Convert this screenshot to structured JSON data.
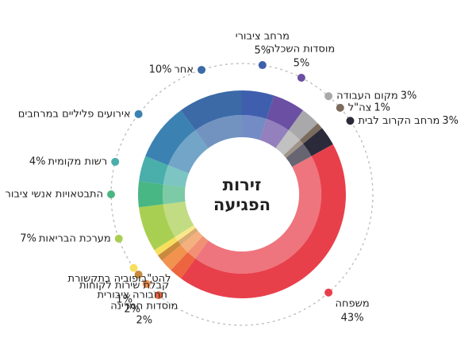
{
  "chart_data": {
    "type": "donut",
    "title": [
      "זירות",
      "הפגיעה"
    ],
    "categories": [
      "מרחב ציבורי",
      "מוסדות השכלה",
      "מקום העבודה",
      "צה\"ל",
      "מרחב הקרוב לבית",
      "משפחה",
      "מוסדות המדינה",
      "תחבורה ציבורית",
      "קבלת שירות לקוחות",
      "להט\"בופוביה בתקשורת",
      "מערכת הבריאות",
      "התבטאויות אנשי ציבור",
      "רשות מקומית",
      "אירועים פליליים במרחבים",
      "אחר"
    ],
    "values": [
      5,
      5,
      3,
      1,
      3,
      43,
      2,
      2,
      1,
      1,
      7,
      4,
      4,
      9,
      10
    ],
    "value_labels": [
      "5%",
      "5%",
      "3%",
      "1%",
      "3%",
      "43%",
      "2%",
      "2%",
      "1%",
      null,
      "7%",
      null,
      "4%",
      null,
      "10%"
    ],
    "colors": [
      "#3f5fae",
      "#6a4fa3",
      "#a9a9ab",
      "#7b6b5c",
      "#2b2a3a",
      "#e8404b",
      "#ec653f",
      "#f1924f",
      "#c98a3d",
      "#f7df5e",
      "#a9cf52",
      "#49b783",
      "#4aaeaa",
      "#3b82b2",
      "#3b6aa7"
    ]
  }
}
